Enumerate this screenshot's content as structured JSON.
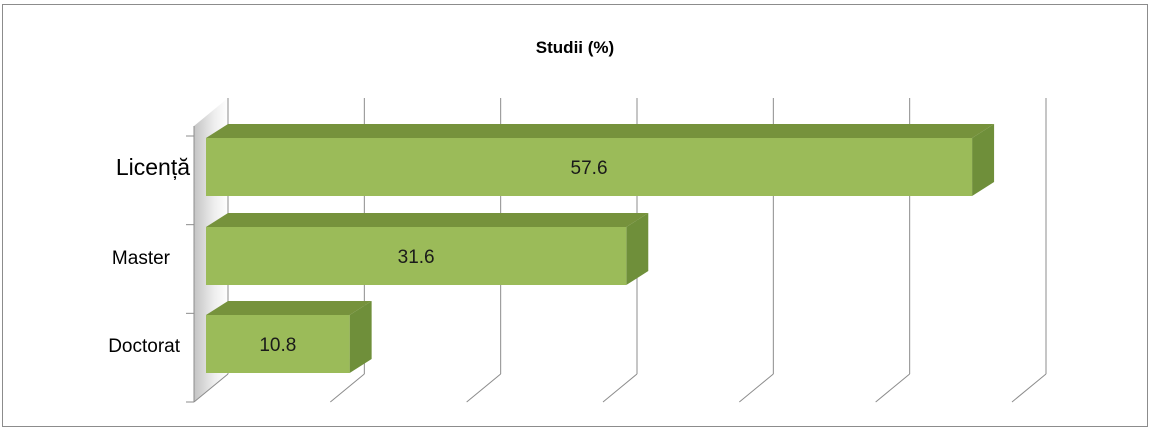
{
  "chart_data": {
    "type": "bar",
    "orientation": "horizontal",
    "style": "3d",
    "title": "Studii (%)",
    "xlabel": "",
    "ylabel": "",
    "categories": [
      "Licență",
      "Master",
      "Doctorat"
    ],
    "values": [
      57.6,
      31.6,
      10.8
    ],
    "xlim": [
      0,
      60
    ],
    "grid": true,
    "legend": "none",
    "bar_color": "#9bbb59",
    "bar_side_color": "#6f8f3a",
    "bar_top_color": "#76923c"
  }
}
